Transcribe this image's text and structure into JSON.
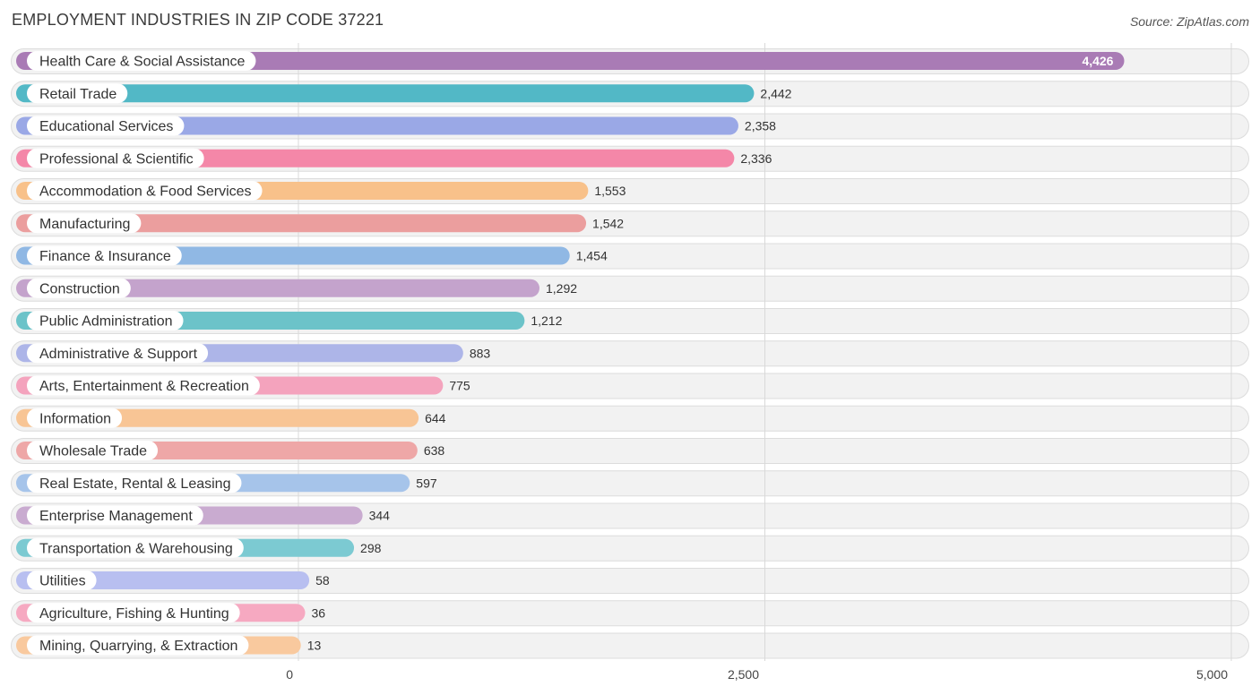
{
  "chart_data": {
    "type": "bar",
    "orientation": "horizontal",
    "title": "EMPLOYMENT INDUSTRIES IN ZIP CODE 37221",
    "source": "Source: ZipAtlas.com",
    "xlim": [
      0,
      5000
    ],
    "ticks": [
      0,
      2500,
      5000
    ],
    "tick_labels": [
      "0",
      "2,500",
      "5,000"
    ],
    "categories": [
      "Health Care & Social Assistance",
      "Retail Trade",
      "Educational Services",
      "Professional & Scientific",
      "Accommodation & Food Services",
      "Manufacturing",
      "Finance & Insurance",
      "Construction",
      "Public Administration",
      "Administrative & Support",
      "Arts, Entertainment & Recreation",
      "Information",
      "Wholesale Trade",
      "Real Estate, Rental & Leasing",
      "Enterprise Management",
      "Transportation & Warehousing",
      "Utilities",
      "Agriculture, Fishing & Hunting",
      "Mining, Quarrying, & Extraction"
    ],
    "values": [
      4426,
      2442,
      2358,
      2336,
      1553,
      1542,
      1454,
      1292,
      1212,
      883,
      775,
      644,
      638,
      597,
      344,
      298,
      58,
      36,
      13
    ],
    "value_labels": [
      "4,426",
      "2,442",
      "2,358",
      "2,336",
      "1,553",
      "1,542",
      "1,454",
      "1,292",
      "1,212",
      "883",
      "775",
      "644",
      "638",
      "597",
      "344",
      "298",
      "58",
      "36",
      "13"
    ],
    "colors": [
      "#a97bb5",
      "#52b8c6",
      "#9aa8e6",
      "#f487a8",
      "#f8c18a",
      "#eb9e9e",
      "#90b8e4",
      "#c4a3cc",
      "#6cc3c9",
      "#adb5e8",
      "#f4a3bd",
      "#f8c595",
      "#eea7a7",
      "#a6c4ea",
      "#c9abd0",
      "#7ccad2",
      "#b8bff0",
      "#f6a9c1",
      "#f9c99e"
    ]
  }
}
